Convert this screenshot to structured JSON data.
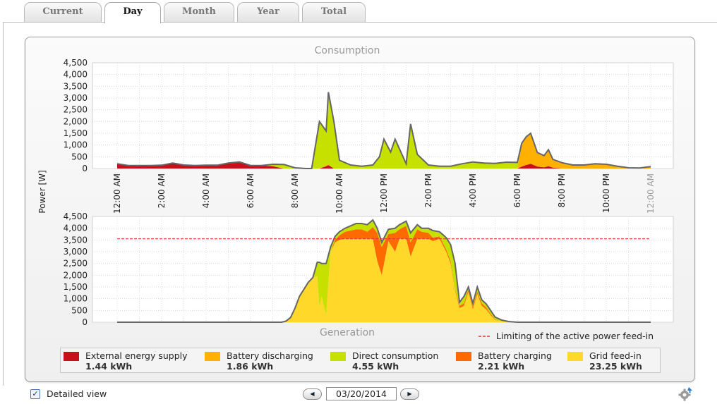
{
  "tabs": [
    {
      "label": "Current",
      "active": false
    },
    {
      "label": "Day",
      "active": true
    },
    {
      "label": "Month",
      "active": false
    },
    {
      "label": "Year",
      "active": false
    },
    {
      "label": "Total",
      "active": false
    }
  ],
  "colors": {
    "external_supply": "#c8101a",
    "battery_discharging": "#ffb000",
    "direct_consumption": "#c6e000",
    "battery_charging": "#ff6a00",
    "grid_feed_in": "#ffd82a",
    "outline": "#666666",
    "limit_line": "#e0333a"
  },
  "legend": [
    {
      "label": "External energy supply",
      "value": "1.44 kWh",
      "color_key": "external_supply"
    },
    {
      "label": "Battery discharging",
      "value": "1.86 kWh",
      "color_key": "battery_discharging"
    },
    {
      "label": "Direct consumption",
      "value": "4.55 kWh",
      "color_key": "direct_consumption"
    },
    {
      "label": "Battery charging",
      "value": "2.21 kWh",
      "color_key": "battery_charging"
    },
    {
      "label": "Grid feed-in",
      "value": "23.25 kWh",
      "color_key": "grid_feed_in"
    }
  ],
  "limit_label": "Limiting of the active power feed-in",
  "detailed_view_label": "Detailed view",
  "detailed_view_checked": true,
  "date": "03/20/2014",
  "nav_icons": {
    "prev": "left-arrow-icon",
    "next": "right-arrow-icon",
    "settings": "gear-icon"
  },
  "chart_data": [
    {
      "type": "area",
      "title": "Consumption",
      "ylabel": "Power [W]",
      "ylim": [
        0,
        4500
      ],
      "yticks": [
        "0",
        "500",
        "1,000",
        "1,500",
        "2,000",
        "2,500",
        "3,000",
        "3,500",
        "4,000",
        "4,500"
      ],
      "xlim": [
        0,
        24
      ],
      "xticks": [
        "12:00 AM",
        "2:00 AM",
        "4:00 AM",
        "6:00 AM",
        "8:00 AM",
        "10:00 AM",
        "12:00 PM",
        "2:00 PM",
        "4:00 PM",
        "6:00 PM",
        "8:00 PM",
        "10:00 PM",
        "12:00 AM"
      ],
      "x": [
        0,
        0.5,
        1,
        1.5,
        2,
        2.5,
        3,
        3.5,
        4,
        4.5,
        5,
        5.5,
        6,
        6.5,
        7,
        7.5,
        8,
        8.5,
        8.75,
        9.1,
        9.4,
        9.5,
        9.75,
        10,
        10.5,
        11,
        11.5,
        11.8,
        12,
        12.3,
        12.5,
        13,
        13.2,
        13.5,
        14,
        14.5,
        15,
        15.5,
        16,
        16.5,
        17,
        17.5,
        18,
        18.2,
        18.4,
        18.6,
        18.9,
        19.2,
        19.4,
        19.6,
        20,
        20.5,
        21,
        21.5,
        22,
        22.5,
        23,
        23.5,
        24
      ],
      "series": [
        {
          "name": "External energy supply",
          "values": [
            200,
            130,
            130,
            130,
            140,
            230,
            150,
            130,
            140,
            140,
            230,
            280,
            130,
            130,
            100,
            0,
            0,
            0,
            0,
            0,
            100,
            150,
            0,
            0,
            0,
            0,
            0,
            0,
            0,
            0,
            0,
            0,
            0,
            0,
            0,
            0,
            0,
            0,
            0,
            0,
            0,
            0,
            0,
            80,
            150,
            200,
            80,
            50,
            100,
            40,
            0,
            0,
            0,
            0,
            0,
            0,
            0,
            0,
            0
          ]
        },
        {
          "name": "Battery discharging",
          "values": [
            0,
            0,
            0,
            0,
            0,
            0,
            0,
            0,
            0,
            0,
            0,
            0,
            0,
            0,
            0,
            0,
            0,
            0,
            0,
            0,
            0,
            0,
            0,
            0,
            0,
            0,
            0,
            0,
            0,
            0,
            0,
            0,
            0,
            0,
            0,
            0,
            0,
            0,
            0,
            0,
            0,
            0,
            0,
            1000,
            1200,
            1300,
            600,
            500,
            700,
            350,
            250,
            150,
            150,
            200,
            180,
            100,
            30,
            20,
            80
          ]
        },
        {
          "name": "Direct consumption",
          "values": [
            0,
            0,
            0,
            0,
            0,
            0,
            0,
            0,
            0,
            0,
            0,
            0,
            0,
            0,
            80,
            170,
            30,
            0,
            0,
            2000,
            1500,
            3100,
            2000,
            350,
            150,
            100,
            150,
            500,
            1250,
            700,
            1250,
            200,
            1900,
            600,
            150,
            100,
            100,
            200,
            280,
            230,
            220,
            270,
            260,
            0,
            0,
            0,
            0,
            0,
            0,
            0,
            0,
            0,
            0,
            0,
            0,
            0,
            0,
            0,
            0
          ]
        }
      ]
    },
    {
      "type": "area",
      "title": "Generation",
      "ylabel": "Power [W]",
      "ylim": [
        0,
        4500
      ],
      "yticks": [
        "0",
        "500",
        "1,000",
        "1,500",
        "2,000",
        "2,500",
        "3,000",
        "3,500",
        "4,000",
        "4,500"
      ],
      "xlim": [
        0,
        24
      ],
      "limit": 3550,
      "x": [
        0,
        1,
        2,
        3,
        4,
        5,
        6,
        7,
        7.2,
        7.4,
        7.6,
        7.8,
        8,
        8.2,
        8.4,
        8.6,
        8.8,
        9,
        9.1,
        9.2,
        9.4,
        9.6,
        9.8,
        10,
        10.25,
        10.5,
        10.75,
        11,
        11.25,
        11.5,
        11.7,
        11.9,
        12.2,
        12.5,
        12.7,
        13,
        13.2,
        13.5,
        13.7,
        14,
        14.2,
        14.5,
        14.8,
        15,
        15.2,
        15.4,
        15.6,
        15.8,
        16,
        16.2,
        16.4,
        16.6,
        16.8,
        17,
        17.3,
        17.6,
        18,
        18.5,
        19,
        24
      ],
      "series": [
        {
          "name": "Grid feed-in",
          "values": [
            0,
            0,
            0,
            0,
            0,
            0,
            0,
            0,
            0,
            0,
            50,
            200,
            600,
            1100,
            1400,
            1700,
            1900,
            1950,
            650,
            1100,
            300,
            3000,
            3400,
            3500,
            3550,
            3550,
            3550,
            3550,
            3550,
            3550,
            2600,
            2000,
            3450,
            3000,
            3550,
            3550,
            2800,
            3550,
            3550,
            3550,
            3450,
            3550,
            3000,
            2500,
            1350,
            600,
            700,
            1300,
            550,
            1200,
            700,
            550,
            300,
            100,
            40,
            10,
            0,
            0,
            0,
            0
          ]
        },
        {
          "name": "Battery charging",
          "values": [
            0,
            0,
            0,
            0,
            0,
            0,
            0,
            0,
            0,
            0,
            0,
            0,
            0,
            0,
            0,
            0,
            0,
            0,
            0,
            0,
            0,
            0,
            100,
            200,
            300,
            350,
            400,
            400,
            300,
            500,
            1200,
            1200,
            300,
            800,
            400,
            550,
            600,
            400,
            300,
            250,
            150,
            100,
            100,
            100,
            50,
            100,
            100,
            100,
            100,
            100,
            100,
            80,
            50,
            20,
            0,
            0,
            0,
            0,
            0,
            0
          ]
        },
        {
          "name": "Direct consumption",
          "values": [
            0,
            0,
            0,
            0,
            0,
            0,
            0,
            0,
            0,
            0,
            0,
            0,
            0,
            0,
            0,
            0,
            0,
            600,
            1900,
            1400,
            2200,
            200,
            150,
            150,
            150,
            200,
            250,
            250,
            300,
            300,
            200,
            200,
            200,
            200,
            200,
            200,
            400,
            200,
            150,
            200,
            300,
            200,
            500,
            700,
            1100,
            150,
            300,
            100,
            150,
            200,
            150,
            150,
            150,
            100,
            50,
            20,
            0,
            0,
            0,
            0
          ]
        }
      ]
    }
  ]
}
